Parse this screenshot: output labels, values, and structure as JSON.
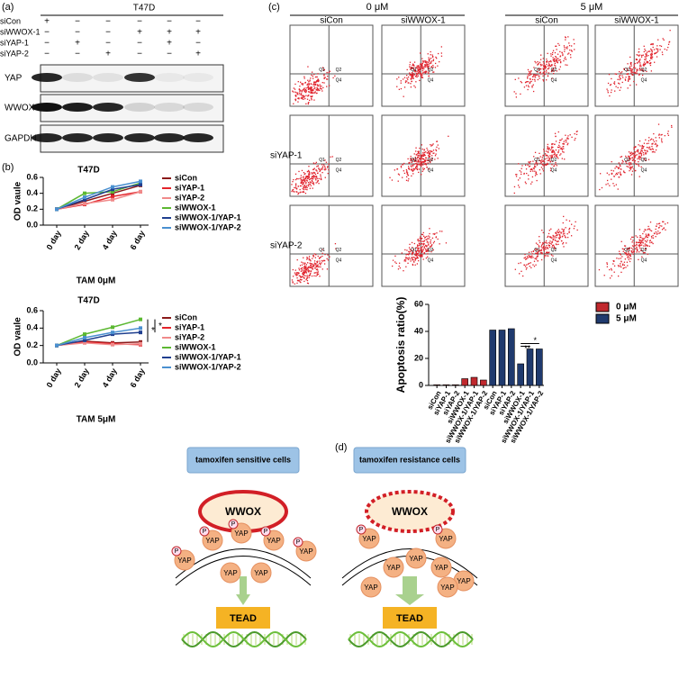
{
  "blot": {
    "panel_label": "(a)",
    "cell_line": "T47D",
    "treatments": [
      {
        "name": "siCon",
        "lanes": [
          "+",
          "−",
          "−",
          "−",
          "−",
          "−"
        ]
      },
      {
        "name": "siWWOX-1",
        "lanes": [
          "−",
          "−",
          "−",
          "+",
          "+",
          "+"
        ]
      },
      {
        "name": "siYAP-1",
        "lanes": [
          "−",
          "+",
          "−",
          "−",
          "+",
          "−"
        ]
      },
      {
        "name": "siYAP-2",
        "lanes": [
          "−",
          "−",
          "+",
          "−",
          "−",
          "+"
        ]
      }
    ],
    "proteins": [
      "YAP",
      "WWOX",
      "GAPDH"
    ]
  },
  "flow": {
    "panel_label": "(c)",
    "columns": [
      {
        "header": "0 μM",
        "samples": [
          "siCon",
          "siWWOX-1"
        ]
      },
      {
        "header": "5 μM",
        "samples": [
          "siCon",
          "siWWOX-1"
        ]
      }
    ],
    "row_labels": [
      "siYAP-1",
      "siYAP-2"
    ],
    "quadrants": [
      "Q1",
      "Q2",
      "Q4"
    ]
  },
  "diagram": {
    "panel_label": "(d)",
    "cells": [
      "tamoxifen sensitive cells",
      "tamoxifen resistance cells"
    ],
    "protein": "WWOX",
    "effector": "YAP",
    "phospho": "P",
    "factor": "TEAD"
  },
  "chart_data": [
    {
      "type": "line",
      "panel_label": "(b)",
      "title": "T47D",
      "y_label": "OD vaule",
      "x_label": "TAM 0μM",
      "categories": [
        "0 day",
        "2 day",
        "4 day",
        "6 day"
      ],
      "ylim": [
        0,
        0.6
      ],
      "yticks": [
        {
          "value": 0,
          "label": "0.0"
        },
        0.2,
        0.4,
        0.6
      ],
      "series": [
        {
          "name": "siCon",
          "color": "#8b1a1a",
          "values": [
            0.2,
            0.3,
            0.4,
            0.5
          ]
        },
        {
          "name": "siYAP-1",
          "color": "#e3242b",
          "values": [
            0.2,
            0.26,
            0.36,
            0.42
          ]
        },
        {
          "name": "siYAP-2",
          "color": "#f08a8a",
          "values": [
            0.2,
            0.27,
            0.32,
            0.42
          ]
        },
        {
          "name": "siWWOX-1",
          "color": "#5cb832",
          "values": [
            0.2,
            0.4,
            0.42,
            0.53
          ]
        },
        {
          "name": "siWWOX-1/YAP-1",
          "color": "#1f3f8f",
          "values": [
            0.2,
            0.32,
            0.45,
            0.51
          ]
        },
        {
          "name": "siWWOX-1/YAP-2",
          "color": "#4a90d0",
          "values": [
            0.2,
            0.35,
            0.48,
            0.55
          ]
        }
      ]
    },
    {
      "type": "line",
      "title": "T47D",
      "y_label": "OD vaule",
      "x_label": "TAM 5μM",
      "categories": [
        "0 day",
        "2 day",
        "4 day",
        "6 day"
      ],
      "ylim": [
        0,
        0.6
      ],
      "yticks": [
        {
          "value": 0,
          "label": "0.0"
        },
        0.2,
        0.4,
        0.6
      ],
      "annotations": [
        "*",
        "*"
      ],
      "series": [
        {
          "name": "siCon",
          "color": "#8b1a1a",
          "values": [
            0.2,
            0.25,
            0.23,
            0.24
          ]
        },
        {
          "name": "siYAP-1",
          "color": "#e3242b",
          "values": [
            0.2,
            0.24,
            0.22,
            0.21
          ]
        },
        {
          "name": "siYAP-2",
          "color": "#f08a8a",
          "values": [
            0.2,
            0.23,
            0.21,
            0.22
          ]
        },
        {
          "name": "siWWOX-1",
          "color": "#5cb832",
          "values": [
            0.2,
            0.33,
            0.41,
            0.5
          ]
        },
        {
          "name": "siWWOX-1/YAP-1",
          "color": "#1f3f8f",
          "values": [
            0.2,
            0.26,
            0.33,
            0.35
          ]
        },
        {
          "name": "siWWOX-1/YAP-2",
          "color": "#4a90d0",
          "values": [
            0.2,
            0.29,
            0.35,
            0.4
          ]
        }
      ]
    },
    {
      "type": "bar",
      "y_label": "Apoptosis ratio(%)",
      "categories": [
        "siCon",
        "siYAP-1",
        "siYAP-2",
        "siWWOX-1",
        "siWWOX-1/YAP-1",
        "siWWOX-1/YAP-2",
        "siCon",
        "siYAP-1",
        "siYAP-2",
        "siWWOX-1",
        "siWWOX-1/YAP-1",
        "siWWOX-1/YAP-2"
      ],
      "ylim": [
        0,
        60
      ],
      "yticks": [
        0,
        20,
        40,
        60
      ],
      "annotations": [
        "*",
        "**"
      ],
      "series": [
        {
          "name": "0 μM",
          "color": "#c0282d",
          "values": [
            0.5,
            0.5,
            0.5,
            5,
            6,
            4,
            null,
            null,
            null,
            null,
            null,
            null
          ]
        },
        {
          "name": "5 μM",
          "color": "#1f3a6e",
          "values": [
            null,
            null,
            null,
            null,
            null,
            null,
            41,
            41,
            42,
            16,
            27,
            27
          ]
        }
      ]
    }
  ]
}
